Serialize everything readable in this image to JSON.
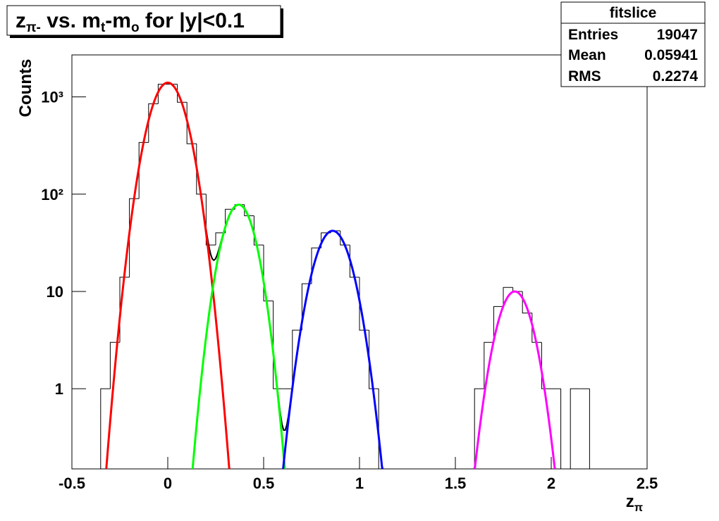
{
  "chart_data": {
    "type": "histogram",
    "title_parts": [
      "z",
      "π-",
      " vs. m",
      "t",
      "-m",
      "o",
      " for |y|<0.1"
    ],
    "xlabel_parts": [
      "z",
      "π"
    ],
    "ylabel": "Counts",
    "color": "#000000",
    "bins": [
      -0.5,
      -0.45,
      -0.4,
      -0.35,
      -0.3,
      -0.25,
      -0.2,
      -0.15,
      -0.1,
      -0.05,
      0,
      0.05,
      0.1,
      0.15,
      0.2,
      0.25,
      0.3,
      0.35,
      0.4,
      0.45,
      0.5,
      0.55,
      0.6,
      0.65,
      0.7,
      0.75,
      0.8,
      0.85,
      0.9,
      0.95,
      1,
      1.05,
      1.1,
      1.15,
      1.2,
      1.25,
      1.3,
      1.35,
      1.4,
      1.45,
      1.5,
      1.55,
      1.6,
      1.65,
      1.7,
      1.75,
      1.8,
      1.85,
      1.9,
      1.95,
      2,
      2.05,
      2.1,
      2.15,
      2.2,
      2.25,
      2.3,
      2.35,
      2.4,
      2.45,
      2.5
    ],
    "values": [
      0,
      0,
      0,
      1,
      3,
      14,
      90,
      340,
      850,
      1350,
      1350,
      880,
      330,
      100,
      30,
      40,
      70,
      78,
      60,
      30,
      8,
      1,
      1,
      4,
      12,
      28,
      40,
      42,
      30,
      14,
      4,
      1,
      0,
      0,
      0,
      0,
      0,
      0,
      0,
      0,
      0,
      0,
      1,
      3,
      7,
      11,
      10,
      6,
      3,
      1,
      1,
      0,
      1,
      1,
      0,
      0,
      0,
      0,
      0,
      0
    ],
    "fits": [
      {
        "color": "#ff0000",
        "constant": 1400,
        "mean": 0.0,
        "sigma": 0.075,
        "range": [
          -0.33,
          0.34
        ]
      },
      {
        "color": "#00ff00",
        "constant": 78,
        "mean": 0.37,
        "sigma": 0.068,
        "range": [
          0.08,
          0.66
        ]
      },
      {
        "color": "#0000ff",
        "constant": 42,
        "mean": 0.86,
        "sigma": 0.077,
        "range": [
          0.53,
          1.12
        ]
      },
      {
        "color": "#ff00ff",
        "constant": 10,
        "mean": 1.81,
        "sigma": 0.072,
        "range": [
          1.5,
          2.15
        ]
      }
    ],
    "xlim": [
      -0.5,
      2.5
    ],
    "xticks": [
      -0.5,
      0,
      0.5,
      1,
      1.5,
      2,
      2.5
    ],
    "ylim": [
      0.15,
      2700
    ],
    "ylog": true,
    "yticks": [
      1,
      10,
      {
        "value": 100,
        "label": "10²"
      },
      {
        "value": 1000,
        "label": "10³"
      }
    ],
    "stats": {
      "title": "fitslice",
      "rows": [
        [
          "Entries",
          19047
        ],
        [
          "Mean",
          0.05941
        ],
        [
          "RMS",
          0.2274
        ]
      ]
    }
  }
}
